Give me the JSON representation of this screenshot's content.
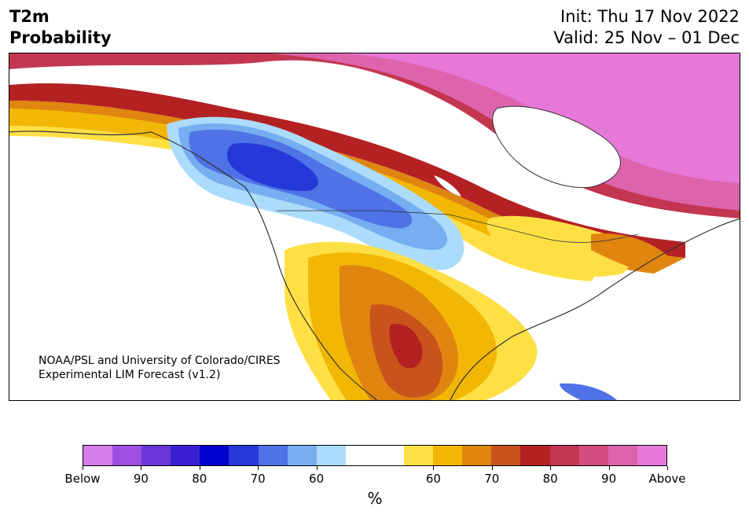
{
  "header": {
    "title_line1": "T2m",
    "title_line2": "Probability",
    "init": "Init: Thu 17 Nov 2022",
    "valid": "Valid: 25 Nov – 01 Dec"
  },
  "credit": {
    "line1": "NOAA/PSL and University of Colorado/CIRES",
    "line2": "Experimental LIM Forecast (v1.2)"
  },
  "colorbar": {
    "unit": "%",
    "colors": [
      "#d67bea",
      "#9f50e0",
      "#6a36d8",
      "#3a1fd3",
      "#0000cc",
      "#2538d8",
      "#4f72e6",
      "#76aef1",
      "#acdcfb",
      "#ffffff",
      "#ffffff",
      "#fee045",
      "#f2b705",
      "#df8510",
      "#c8531b",
      "#b42123",
      "#c33650",
      "#d34d80",
      "#dd63ac",
      "#e678d8"
    ],
    "ticks": [
      {
        "label": "Below",
        "idx": 0
      },
      {
        "label": "90",
        "idx": 2
      },
      {
        "label": "80",
        "idx": 4
      },
      {
        "label": "70",
        "idx": 6
      },
      {
        "label": "60",
        "idx": 8
      },
      {
        "label": "60",
        "idx": 12
      },
      {
        "label": "70",
        "idx": 14
      },
      {
        "label": "80",
        "idx": 16
      },
      {
        "label": "90",
        "idx": 18
      },
      {
        "label": "Above",
        "idx": 20
      }
    ]
  },
  "map": {
    "ocean_color": "#ffffff",
    "land_line_color": "#333333"
  }
}
